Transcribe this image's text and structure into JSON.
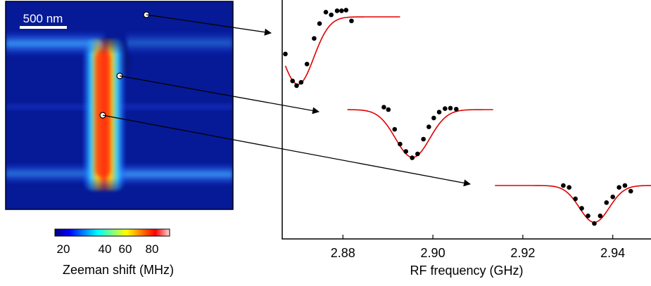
{
  "map_panel": {
    "scalebar_label": "500 nm",
    "colorbar": {
      "tick_labels": [
        "20",
        "40",
        "60",
        "80"
      ],
      "label": "Zeeman shift (MHz)",
      "colormap": [
        "#00007f",
        "#0000ff",
        "#0080ff",
        "#00ffff",
        "#80ff80",
        "#ffff00",
        "#ff8000",
        "#ff0000",
        "#ffd9d9"
      ]
    }
  },
  "chart_data": {
    "type": "scatter",
    "xlabel": "RF frequency (GHz)",
    "ylabel": "",
    "x_ticks": [
      "2.88",
      "2.90",
      "2.92",
      "2.94"
    ],
    "xlim": [
      2.8665,
      2.9485
    ],
    "series": [
      {
        "points": [
          [
            2.8672,
            -0.55
          ],
          [
            2.8688,
            -0.95
          ],
          [
            2.8697,
            -1.02
          ],
          [
            2.8707,
            -0.97
          ],
          [
            2.872,
            -0.7
          ],
          [
            2.8736,
            -0.32
          ],
          [
            2.8748,
            -0.1
          ],
          [
            2.8762,
            0.07
          ],
          [
            2.8774,
            0.03
          ],
          [
            2.8787,
            0.09
          ],
          [
            2.8797,
            0.09
          ],
          [
            2.8807,
            0.1
          ],
          [
            2.8819,
            -0.06
          ]
        ],
        "fit": {
          "center": 2.87,
          "depth": 1.0,
          "width": 0.0035,
          "x_range": [
            2.8672,
            2.8927
          ]
        },
        "line_color": "#e00000",
        "point_color": "#000000"
      },
      {
        "points": [
          [
            2.8891,
            0.05
          ],
          [
            2.8901,
            0.0
          ],
          [
            2.8915,
            -0.4
          ],
          [
            2.8927,
            -0.7
          ],
          [
            2.894,
            -0.85
          ],
          [
            2.8954,
            -0.98
          ],
          [
            2.8966,
            -0.9
          ],
          [
            2.8979,
            -0.6
          ],
          [
            2.8991,
            -0.35
          ],
          [
            2.9002,
            -0.17
          ],
          [
            2.9014,
            -0.05
          ],
          [
            2.9027,
            0.02
          ],
          [
            2.9039,
            0.03
          ],
          [
            2.9052,
            0.01
          ]
        ],
        "fit": {
          "center": 2.8955,
          "depth": 0.97,
          "width": 0.0038,
          "x_range": [
            2.881,
            2.9134
          ]
        },
        "line_color": "#e00000",
        "point_color": "#000000"
      },
      {
        "points": [
          [
            2.929,
            0.0
          ],
          [
            2.9303,
            -0.05
          ],
          [
            2.9317,
            -0.35
          ],
          [
            2.9331,
            -0.6
          ],
          [
            2.9345,
            -0.8
          ],
          [
            2.9359,
            -1.0
          ],
          [
            2.9372,
            -0.8
          ],
          [
            2.9386,
            -0.45
          ],
          [
            2.94,
            -0.3
          ],
          [
            2.9414,
            -0.05
          ],
          [
            2.9427,
            0.0
          ],
          [
            2.944,
            -0.15
          ]
        ],
        "fit": {
          "center": 2.9359,
          "depth": 0.97,
          "width": 0.0033,
          "x_range": [
            2.9138,
            2.9485
          ]
        },
        "line_color": "#e00000",
        "point_color": "#000000"
      }
    ]
  }
}
